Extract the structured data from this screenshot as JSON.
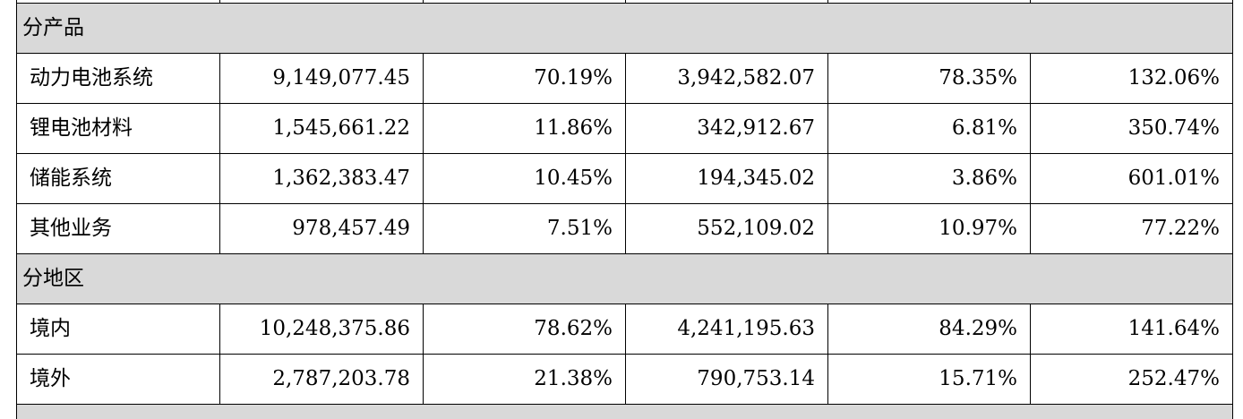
{
  "table": {
    "sections": [
      {
        "title": "分产品",
        "rows": [
          {
            "label": "动力电池系统",
            "values": [
              "9,149,077.45",
              "70.19%",
              "3,942,582.07",
              "78.35%",
              "132.06%"
            ]
          },
          {
            "label": "锂电池材料",
            "values": [
              "1,545,661.22",
              "11.86%",
              "342,912.67",
              "6.81%",
              "350.74%"
            ]
          },
          {
            "label": "储能系统",
            "values": [
              "1,362,383.47",
              "10.45%",
              "194,345.02",
              "3.86%",
              "601.01%"
            ]
          },
          {
            "label": "其他业务",
            "values": [
              "978,457.49",
              "7.51%",
              "552,109.02",
              "10.97%",
              "77.22%"
            ]
          }
        ]
      },
      {
        "title": "分地区",
        "rows": [
          {
            "label": "境内",
            "values": [
              "10,248,375.86",
              "78.62%",
              "4,241,195.63",
              "84.29%",
              "141.64%"
            ]
          },
          {
            "label": "境外",
            "values": [
              "2,787,203.78",
              "21.38%",
              "790,753.14",
              "15.71%",
              "252.47%"
            ]
          }
        ]
      }
    ],
    "colors": {
      "section_background": "#d9d9d9",
      "border": "#000000",
      "text": "#000000"
    }
  }
}
